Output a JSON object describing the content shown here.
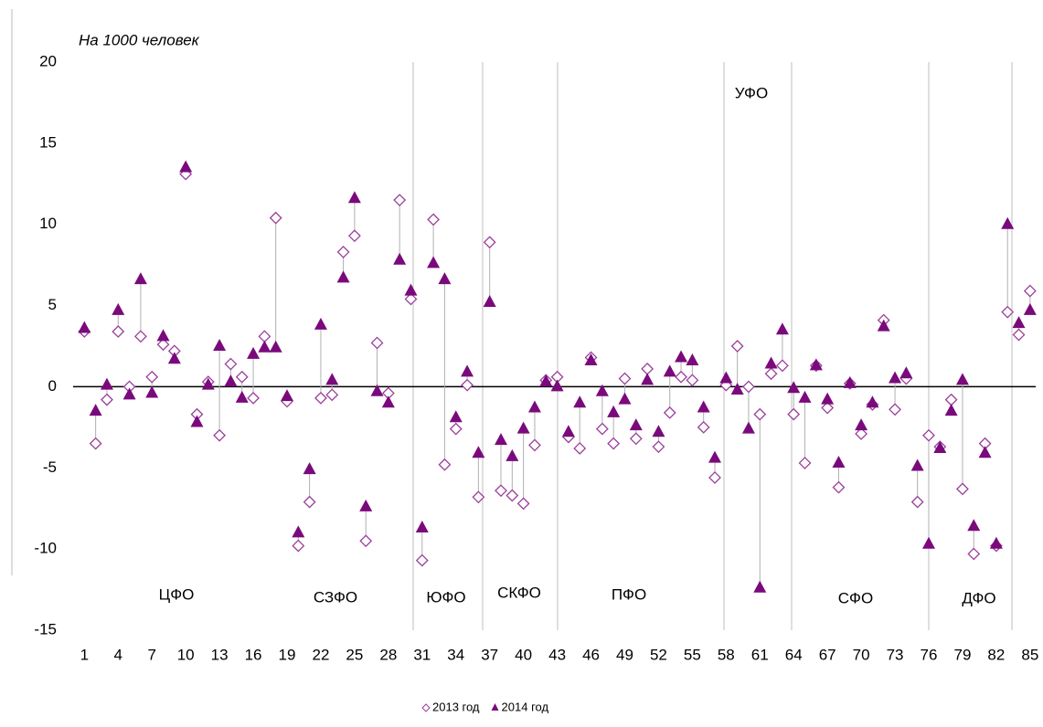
{
  "chart_data": {
    "type": "scatter",
    "subtitle": "На 1000 человек",
    "x": [
      1,
      2,
      3,
      4,
      5,
      6,
      7,
      8,
      9,
      10,
      11,
      12,
      13,
      14,
      15,
      16,
      17,
      18,
      19,
      20,
      21,
      22,
      23,
      24,
      25,
      26,
      27,
      28,
      29,
      30,
      31,
      32,
      33,
      34,
      35,
      36,
      37,
      38,
      39,
      40,
      41,
      42,
      43,
      44,
      45,
      46,
      47,
      48,
      49,
      50,
      51,
      52,
      53,
      54,
      55,
      56,
      57,
      58,
      59,
      60,
      61,
      62,
      63,
      64,
      65,
      66,
      67,
      68,
      69,
      70,
      71,
      72,
      73,
      74,
      75,
      76,
      77,
      78,
      79,
      80,
      81,
      82,
      83,
      84,
      85
    ],
    "series": [
      {
        "name": "2013 год",
        "color": "#9b3f9b",
        "marker": "diamond",
        "values": [
          3.4,
          -3.5,
          -0.8,
          3.4,
          0,
          3.1,
          0.6,
          2.6,
          2.2,
          13.1,
          -1.7,
          0.3,
          -3.0,
          1.4,
          0.6,
          -0.7,
          3.1,
          10.4,
          -0.9,
          -9.8,
          -7.1,
          -0.7,
          -0.5,
          8.3,
          9.3,
          -9.5,
          2.7,
          -0.4,
          11.5,
          5.4,
          -10.7,
          10.3,
          -4.8,
          -2.6,
          0.1,
          -6.8,
          8.9,
          -6.4,
          -6.7,
          -7.2,
          -3.6,
          0.4,
          0.6,
          -3.1,
          -3.8,
          1.8,
          -2.6,
          -3.5,
          0.5,
          -3.2,
          1.1,
          -3.7,
          -1.6,
          0.6,
          0.4,
          -2.5,
          -5.6,
          0.1,
          2.5,
          0.0,
          -1.7,
          0.8,
          1.3,
          -1.7,
          -4.7,
          1.3,
          -1.3,
          -6.2,
          0.2,
          -2.9,
          -1.1,
          4.1,
          -1.4,
          0.5,
          -7.1,
          -3.0,
          -3.7,
          -0.8,
          -6.3,
          -10.3,
          -3.5,
          -9.8,
          4.6,
          3.2,
          5.9
        ]
      },
      {
        "name": "2014 год",
        "color": "#7a0a7c",
        "marker": "triangle",
        "values": [
          3.6,
          -1.5,
          0.1,
          4.7,
          -0.5,
          6.6,
          -0.4,
          3.1,
          1.7,
          13.5,
          -2.2,
          0.1,
          2.5,
          0.3,
          -0.7,
          2.0,
          2.4,
          2.4,
          -0.6,
          -9.0,
          -5.1,
          3.8,
          0.4,
          6.7,
          11.6,
          -7.4,
          -0.3,
          -1.0,
          7.8,
          5.9,
          -8.7,
          7.6,
          6.6,
          -1.9,
          0.9,
          -4.1,
          5.2,
          -3.3,
          -4.3,
          -2.6,
          -1.3,
          0.3,
          0.0,
          -2.8,
          -1.0,
          1.6,
          -0.3,
          -1.6,
          -0.8,
          -2.4,
          0.4,
          -2.8,
          0.9,
          1.8,
          1.6,
          -1.3,
          -4.4,
          0.5,
          -0.2,
          -2.6,
          -12.4,
          1.4,
          3.5,
          -0.1,
          -0.7,
          1.3,
          -0.8,
          -4.7,
          0.2,
          -2.4,
          -1.0,
          3.7,
          0.5,
          0.8,
          -4.9,
          -9.7,
          -3.8,
          -1.5,
          0.4,
          -8.6,
          -4.1,
          -9.7,
          10.0,
          3.9,
          4.7
        ]
      }
    ],
    "districts": [
      "ЦФО",
      "СЗФО",
      "ЮФО",
      "СКФО",
      "ПФО",
      "УФО",
      "СФО",
      "ДФО"
    ],
    "xlim": [
      0,
      85.5
    ],
    "xticks": [
      1,
      4,
      7,
      10,
      13,
      16,
      19,
      22,
      25,
      28,
      31,
      34,
      37,
      40,
      43,
      46,
      49,
      52,
      55,
      58,
      61,
      64,
      67,
      70,
      73,
      76,
      79,
      82,
      85
    ],
    "ylim": [
      -15,
      20
    ],
    "yticks": [
      20,
      15,
      10,
      5,
      0,
      -5,
      -10,
      -15
    ]
  }
}
